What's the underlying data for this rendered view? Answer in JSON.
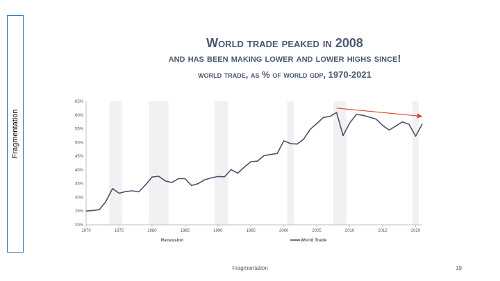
{
  "sidebar": {
    "label": "Fragmentation"
  },
  "title": {
    "line1": "World trade peaked in 2008",
    "line2": "and has been making lower and lower highs since!",
    "line3": "world trade, as % of world gdp, 1970-2021"
  },
  "footer": {
    "text": "Fragmentation",
    "page": "19"
  },
  "colors": {
    "series": "#4b5068",
    "arrow": "#d9432f",
    "recession": "#f1f1f4",
    "title": "#4b5a70"
  },
  "chart_data": {
    "type": "line",
    "x": [
      1970,
      1971,
      1972,
      1973,
      1974,
      1975,
      1976,
      1977,
      1978,
      1979,
      1980,
      1981,
      1982,
      1983,
      1984,
      1985,
      1986,
      1987,
      1988,
      1989,
      1990,
      1991,
      1992,
      1993,
      1994,
      1995,
      1996,
      1997,
      1998,
      1999,
      2000,
      2001,
      2002,
      2003,
      2004,
      2005,
      2006,
      2007,
      2008,
      2009,
      2010,
      2011,
      2012,
      2013,
      2014,
      2015,
      2016,
      2017,
      2018,
      2019,
      2020,
      2021
    ],
    "series": [
      {
        "name": "World Trade",
        "values": [
          25.0,
          25.2,
          25.5,
          28.5,
          33.2,
          31.5,
          32.1,
          32.4,
          32.0,
          34.5,
          37.4,
          37.7,
          36.0,
          35.4,
          36.8,
          36.8,
          34.3,
          35.0,
          36.4,
          37.1,
          37.6,
          37.5,
          40.1,
          38.8,
          41.0,
          43.0,
          43.2,
          45.2,
          45.6,
          46.0,
          50.6,
          49.6,
          49.4,
          51.2,
          54.8,
          56.9,
          59.1,
          59.5,
          60.9,
          52.5,
          57.1,
          60.2,
          59.9,
          59.2,
          58.5,
          56.2,
          54.5,
          56.0,
          57.5,
          56.6,
          52.3,
          56.7
        ]
      }
    ],
    "recessions": [
      [
        1974,
        1975
      ],
      [
        1980,
        1982
      ],
      [
        1990,
        1991
      ],
      [
        2001,
        2001
      ],
      [
        2008,
        2009
      ],
      [
        2020,
        2020
      ]
    ],
    "x_ticks": [
      1970,
      1975,
      1980,
      1985,
      1990,
      1995,
      2000,
      2005,
      2010,
      2015,
      2020
    ],
    "y_ticks": [
      "20%",
      "25%",
      "30%",
      "35%",
      "40%",
      "45%",
      "50%",
      "55%",
      "60%",
      "65%"
    ],
    "xlim": [
      1970,
      2021
    ],
    "ylim": [
      20,
      65
    ],
    "legend": [
      {
        "label": "Recession"
      },
      {
        "label": "World Trade"
      }
    ],
    "legend_position": "bottom",
    "trend_arrow": {
      "from": [
        2008,
        61.0
      ],
      "to": [
        2021,
        58.0
      ]
    },
    "grid": false
  }
}
